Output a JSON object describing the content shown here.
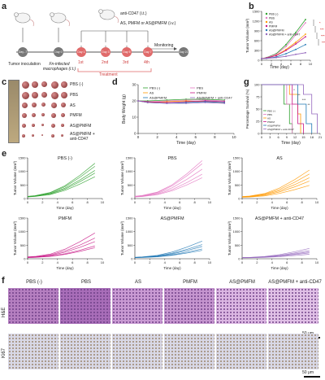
{
  "panel_letters": {
    "a": "a",
    "b": "b",
    "c": "c",
    "d": "d",
    "e": "e",
    "f": "f",
    "g": "g"
  },
  "scheme": {
    "tumor_inoculation": "Tumor inoculation",
    "fn_macrophages": "Fn-infected macrophages (i.t.)",
    "anti_cd47": "anti-CD47 (i.t.)",
    "treatment_agents": "AS, PMFM or AS@PMFM (i.v.)",
    "monitoring": "Monitoring",
    "treatment": "Treatment",
    "days": [
      "Day -7",
      "Day 0",
      "Day 1",
      "Day 3",
      "Day 5",
      "Day 7",
      "Day 21"
    ],
    "dose_labels": [
      "1st",
      "2nd",
      "3rd",
      "4th"
    ]
  },
  "photo_legend": [
    "PBS (-)",
    "PBS",
    "AS",
    "PMFM",
    "AS@PMFM",
    "AS@PMFM + anti-CD47"
  ],
  "colors": {
    "PBS (-)": "#2ca02c",
    "PBS": "#e377c2",
    "AS": "#ff9900",
    "PMFM": "#c71585",
    "AS@PMFM": "#1f77b4",
    "AS@PMFM + anti-CD47": "#9467bd"
  },
  "panel_b": {
    "ylabel": "Tumor Volume (mm³)",
    "xlabel": "Time (day)",
    "stars": [
      "*",
      "***",
      "***",
      "***"
    ]
  },
  "panel_d": {
    "ylabel": "Body Weight (g)",
    "xlabel": "Time (day)"
  },
  "panel_g": {
    "ylabel": "Percentage Survival (%)",
    "xlabel": "Time (day)",
    "stars": [
      "*",
      "**",
      "***",
      "**"
    ]
  },
  "panel_e": {
    "ylabel": "Tumor Volume (mm³)",
    "xlabel": "Time (day)",
    "titles": [
      "PBS (-)",
      "PBS",
      "AS",
      "PMFM",
      "AS@PMFM",
      "AS@PMFM + anti-CD47"
    ]
  },
  "panel_f": {
    "columns": [
      "PBS (-)",
      "PBS",
      "AS",
      "PMFM",
      "AS@PMFM",
      "AS@PMFM + anti-CD47"
    ],
    "rows": [
      "H&E",
      "Ki67"
    ],
    "scale_bar": "50 μm"
  },
  "chart_data": [
    {
      "type": "line",
      "id": "b",
      "x": [
        0,
        1,
        3,
        5,
        7,
        9
      ],
      "xlim": [
        0,
        10
      ],
      "ylim": [
        0,
        1500
      ],
      "xticks": [
        0,
        2,
        4,
        6,
        8,
        10
      ],
      "yticks": [
        0,
        300,
        600,
        900,
        1200,
        1500
      ],
      "series": [
        {
          "name": "PBS (-)",
          "values": [
            50,
            80,
            200,
            480,
            850,
            1250
          ]
        },
        {
          "name": "PBS",
          "values": [
            50,
            75,
            180,
            420,
            780,
            1150
          ]
        },
        {
          "name": "AS",
          "values": [
            50,
            70,
            150,
            330,
            550,
            800
          ]
        },
        {
          "name": "PMFM",
          "values": [
            50,
            70,
            140,
            300,
            500,
            720
          ]
        },
        {
          "name": "AS@PMFM",
          "values": [
            50,
            60,
            100,
            200,
            330,
            480
          ]
        },
        {
          "name": "AS@PMFM + anti-CD47",
          "values": [
            50,
            55,
            80,
            120,
            180,
            230
          ]
        }
      ]
    },
    {
      "type": "line",
      "id": "d",
      "x": [
        0,
        1,
        3,
        5,
        7,
        9
      ],
      "xlim": [
        0,
        10
      ],
      "ylim": [
        0,
        30
      ],
      "xticks": [
        0,
        2,
        4,
        6,
        8,
        10
      ],
      "yticks": [
        0,
        10,
        20,
        30
      ],
      "series": [
        {
          "name": "PBS (-)",
          "values": [
            20,
            20,
            20.5,
            21,
            21,
            20.5
          ]
        },
        {
          "name": "PBS",
          "values": [
            20,
            19.5,
            20,
            20.5,
            20.5,
            20
          ]
        },
        {
          "name": "AS",
          "values": [
            20,
            19,
            19.5,
            20,
            19.5,
            19
          ]
        },
        {
          "name": "PMFM",
          "values": [
            20,
            19.5,
            19,
            19.5,
            20,
            19.5
          ]
        },
        {
          "name": "AS@PMFM",
          "values": [
            20,
            19,
            18.5,
            19,
            19.5,
            19
          ]
        },
        {
          "name": "AS@PMFM + anti-CD47",
          "values": [
            20,
            19,
            18.5,
            18.5,
            19,
            18.5
          ]
        }
      ]
    },
    {
      "type": "line",
      "id": "g",
      "step": true,
      "xlim": [
        0,
        21
      ],
      "ylim": [
        0,
        100
      ],
      "xticks": [
        0,
        3,
        6,
        9,
        12,
        15,
        18,
        21
      ],
      "yticks": [
        0,
        25,
        50,
        75,
        100
      ],
      "series": [
        {
          "name": "PBS (-)",
          "points": [
            [
              0,
              100
            ],
            [
              8,
              100
            ],
            [
              8,
              60
            ],
            [
              10,
              60
            ],
            [
              10,
              20
            ],
            [
              11,
              20
            ],
            [
              11,
              0
            ]
          ]
        },
        {
          "name": "PBS",
          "points": [
            [
              0,
              100
            ],
            [
              9,
              100
            ],
            [
              9,
              60
            ],
            [
              11,
              60
            ],
            [
              11,
              0
            ]
          ]
        },
        {
          "name": "AS",
          "points": [
            [
              0,
              100
            ],
            [
              10,
              100
            ],
            [
              10,
              80
            ],
            [
              13,
              80
            ],
            [
              13,
              40
            ],
            [
              14,
              40
            ],
            [
              14,
              0
            ]
          ]
        },
        {
          "name": "PMFM",
          "points": [
            [
              0,
              100
            ],
            [
              11,
              100
            ],
            [
              11,
              60
            ],
            [
              13,
              60
            ],
            [
              13,
              20
            ],
            [
              15,
              20
            ],
            [
              15,
              0
            ]
          ]
        },
        {
          "name": "AS@PMFM",
          "points": [
            [
              0,
              100
            ],
            [
              13,
              100
            ],
            [
              13,
              60
            ],
            [
              16,
              60
            ],
            [
              16,
              20
            ],
            [
              18,
              20
            ],
            [
              18,
              0
            ]
          ]
        },
        {
          "name": "AS@PMFM + anti-CD47",
          "points": [
            [
              0,
              100
            ],
            [
              15,
              100
            ],
            [
              15,
              80
            ],
            [
              18,
              80
            ],
            [
              18,
              40
            ],
            [
              20,
              40
            ],
            [
              20,
              0
            ]
          ]
        }
      ]
    },
    {
      "type": "line",
      "id": "e",
      "x": [
        0,
        1,
        3,
        5,
        7,
        9
      ],
      "xlim": [
        0,
        10
      ],
      "ylim": [
        0,
        1500
      ],
      "xticks": [
        0,
        2,
        4,
        6,
        8,
        10
      ],
      "yticks": [
        0,
        500,
        1000,
        1500
      ],
      "groups": [
        {
          "title": "PBS (-)",
          "final": [
            1300,
            1250,
            1150,
            1100,
            1000
          ]
        },
        {
          "title": "PBS",
          "final": [
            1400,
            1350,
            1200,
            1050,
            950
          ]
        },
        {
          "title": "AS",
          "final": [
            1050,
            950,
            850,
            750,
            600
          ]
        },
        {
          "title": "PMFM",
          "final": [
            950,
            800,
            700,
            550,
            500
          ]
        },
        {
          "title": "AS@PMFM",
          "final": [
            650,
            550,
            500,
            420,
            380
          ]
        },
        {
          "title": "AS@PMFM + anti-CD47",
          "final": [
            380,
            320,
            280,
            250,
            200
          ]
        }
      ]
    }
  ]
}
